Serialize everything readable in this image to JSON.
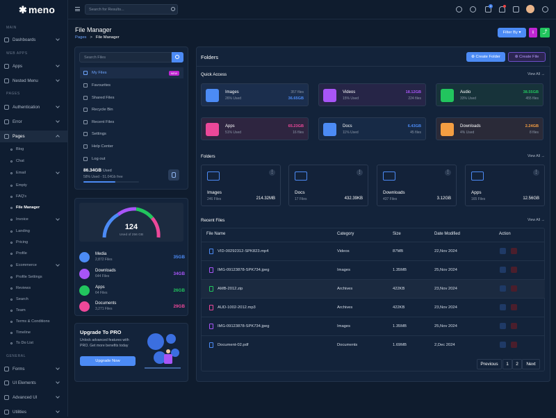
{
  "app": {
    "logo_text": "meno"
  },
  "sidebar": {
    "sections": [
      "MAIN",
      "WEB APPS",
      "PAGES",
      "GENERAL"
    ],
    "items": [
      {
        "label": "Dashboards"
      },
      {
        "label": "Apps"
      },
      {
        "label": "Nested Menu"
      },
      {
        "label": "Authentication"
      },
      {
        "label": "Error"
      },
      {
        "label": "Pages"
      },
      {
        "label": "Forms"
      },
      {
        "label": "UI Elements"
      },
      {
        "label": "Advanced UI"
      },
      {
        "label": "Utilities"
      }
    ],
    "subitems": [
      "Blog",
      "Chat",
      "Email",
      "Empty",
      "FAQ's",
      "File Manager",
      "Invoice",
      "Landing",
      "Pricing",
      "Profile",
      "Ecommerce",
      "Profile Settings",
      "Reviews",
      "Search",
      "Team",
      "Terms & Conditions",
      "Timeline",
      "To Do List"
    ]
  },
  "topbar": {
    "search_placeholder": "Search for Results...",
    "notification_count": "4"
  },
  "header": {
    "title": "File Manager",
    "breadcrumb_root": "Pages",
    "breadcrumb_sep": ">",
    "breadcrumb_current": "File Manager",
    "filter_label": "Filter By"
  },
  "left": {
    "search_placeholder": "Search Files",
    "menu": [
      {
        "label": "My Files",
        "badge": "NEW"
      },
      {
        "label": "Favourites"
      },
      {
        "label": "Shared Files"
      },
      {
        "label": "Recycle Bin"
      },
      {
        "label": "Recent Files"
      },
      {
        "label": "Settings"
      },
      {
        "label": "Help Center"
      },
      {
        "label": "Log out"
      }
    ],
    "storage": {
      "used": "86.34GB",
      "used_label": "Used",
      "detail": "58% Used - 51.04Gb free",
      "percent": 58
    },
    "gauge": {
      "value": "124",
      "label": "Used of 256 GB"
    },
    "stats": [
      {
        "name": "Media",
        "count": "2,872 Files",
        "size": "35GB",
        "color": "#4c8bf5"
      },
      {
        "name": "Downloads",
        "count": "644 Files",
        "size": "34GB",
        "color": "#a855f7"
      },
      {
        "name": "Apps",
        "count": "64 Files",
        "size": "26GB",
        "color": "#22c55e"
      },
      {
        "name": "Documents",
        "count": "3,271 Files",
        "size": "29GB",
        "color": "#ec4899"
      }
    ],
    "upgrade": {
      "title": "Upgrade To PRO",
      "text1": "Unlock advanced features with",
      "text2": "PRO. Get more benefits today",
      "button": "Upgrade Now"
    }
  },
  "folders_panel": {
    "title": "Folders",
    "create_folder": "Create Folder",
    "create_file": "Create File"
  },
  "quick_access": {
    "title": "Quick Access",
    "view_all": "View All",
    "cards": [
      {
        "name": "Images",
        "used": "26% Used",
        "count": "357 files",
        "size": "36.65GB",
        "color": "#4c8bf5",
        "bg": "#1b2e4d"
      },
      {
        "name": "Videos",
        "used": "15% Used",
        "count": "18.12GB",
        "size": "224 files",
        "color": "#a855f7",
        "bg": "#262547"
      },
      {
        "name": "Audio",
        "used": "33% Used",
        "count": "38.55GB",
        "size": "455 files",
        "color": "#22c55e",
        "bg": "#17333a"
      },
      {
        "name": "Apps",
        "used": "51% Used",
        "count": "65.23GB",
        "size": "16 files",
        "color": "#ec4899",
        "bg": "#2e2540"
      },
      {
        "name": "Docs",
        "used": "11% Used",
        "count": "6.43GB",
        "size": "45 files",
        "color": "#4c8bf5",
        "bg": "#172a46"
      },
      {
        "name": "Downloads",
        "used": "4% Used",
        "count": "2.24GB",
        "size": "8 files",
        "color": "#f59e42",
        "bg": "#2a2a38"
      }
    ]
  },
  "folders": {
    "title": "Folders",
    "view_all": "View All",
    "items": [
      {
        "name": "Images",
        "count": "246 Files",
        "size": "214.32MB"
      },
      {
        "name": "Docs",
        "count": "17 Files",
        "size": "432.39KB"
      },
      {
        "name": "Downloads",
        "count": "437 Files",
        "size": "3.12GB"
      },
      {
        "name": "Apps",
        "count": "165 Files",
        "size": "12.56GB"
      }
    ]
  },
  "recent": {
    "title": "Recent Files",
    "view_all": "View All",
    "headers": [
      "File Name",
      "Category",
      "Size",
      "Date Modified",
      "Action"
    ],
    "rows": [
      {
        "name": "VID-00292312-SPK823.mp4",
        "category": "Videos",
        "size": "87MB",
        "date": "22,Nov 2024",
        "color": "#4c8bf5"
      },
      {
        "name": "IMG-09123878-SPK734.jpeg",
        "category": "Images",
        "size": "1.35MB",
        "date": "25,Nov 2024",
        "color": "#a855f7"
      },
      {
        "name": "AMB-2012.zip",
        "category": "Archives",
        "size": "422KB",
        "date": "23,Nov 2024",
        "color": "#22c55e"
      },
      {
        "name": "AUD-1002-2012.mp3",
        "category": "Archives",
        "size": "422KB",
        "date": "23,Nov 2024",
        "color": "#ec4899"
      },
      {
        "name": "IMG-09123878-SPK734.jpeg",
        "category": "Images",
        "size": "1.35MB",
        "date": "25,Nov 2024",
        "color": "#a855f7"
      },
      {
        "name": "Document-02.pdf",
        "category": "Documents",
        "size": "1.69MB",
        "date": "2,Dec 2024",
        "color": "#4c8bf5"
      }
    ],
    "pagination": {
      "prev": "Previous",
      "p1": "1",
      "p2": "2",
      "next": "Next"
    }
  }
}
